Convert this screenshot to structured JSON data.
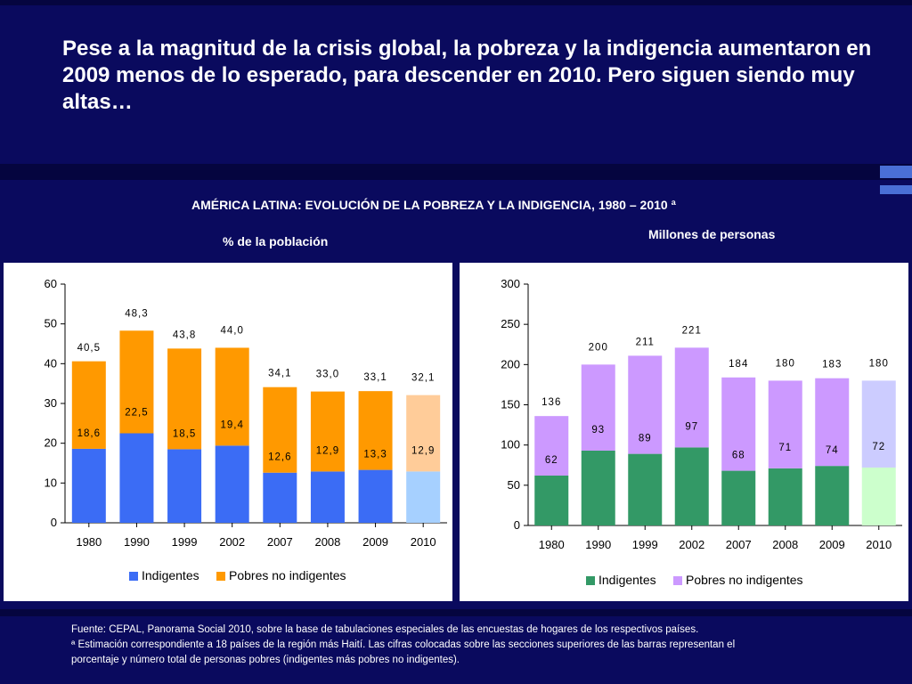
{
  "title": "Pese a la magnitud de la crisis global, la pobreza y la indigencia aumentaron en 2009 menos de lo esperado, para descender en 2010. Pero siguen siendo muy altas…",
  "chart_heading": "AMÉRICA LATINA: EVOLUCIÓN DE LA POBREZA Y LA INDIGENCIA, 1980 – 2010 ª",
  "footnote_lines": [
    "Fuente: CEPAL, Panorama Social 2010, sobre la base de tabulaciones especiales de las encuestas de hogares de los respectivos países.",
    "ª Estimación correspondiente a 18 países de la región más Haití. Las cifras colocadas sobre las secciones superiores de las barras representan el",
    "porcentaje y número total de personas pobres (indigentes más pobres no indigentes)."
  ],
  "chart_data": [
    {
      "type": "bar",
      "stacked": true,
      "subtitle": "% de la población",
      "categories": [
        "1980",
        "1990",
        "1999",
        "2002",
        "2007",
        "2008",
        "2009",
        "2010"
      ],
      "ylim": [
        0,
        60
      ],
      "yticks": [
        0,
        10,
        20,
        30,
        40,
        50,
        60
      ],
      "series": [
        {
          "name": "Indigentes",
          "color": "#3b6cf5",
          "estimate_color": "#a6d0ff",
          "values": [
            18.6,
            22.5,
            18.5,
            19.4,
            12.6,
            12.9,
            13.3,
            12.9
          ],
          "labels": [
            "18,6",
            "22,5",
            "18,5",
            "19,4",
            "12,6",
            "12,9",
            "13,3",
            "12,9"
          ]
        },
        {
          "name": "Pobres no indigentes",
          "color": "#ff9900",
          "estimate_color": "#ffcc99",
          "values": [
            22.0,
            25.8,
            25.3,
            24.6,
            21.5,
            20.1,
            19.8,
            19.2
          ]
        }
      ],
      "totals": [
        40.5,
        48.3,
        43.8,
        44.0,
        34.1,
        33.0,
        33.1,
        32.1
      ],
      "total_labels": [
        "40,5",
        "48,3",
        "43,8",
        "44,0",
        "34,1",
        "33,0",
        "33,1",
        "32,1"
      ],
      "legend": "bottom"
    },
    {
      "type": "bar",
      "stacked": true,
      "subtitle": "Millones de personas",
      "categories": [
        "1980",
        "1990",
        "1999",
        "2002",
        "2007",
        "2008",
        "2009",
        "2010"
      ],
      "ylim": [
        0,
        300
      ],
      "yticks": [
        0,
        50,
        100,
        150,
        200,
        250,
        300
      ],
      "series": [
        {
          "name": "Indigentes",
          "color": "#339966",
          "estimate_color": "#ccffcc",
          "values": [
            62,
            93,
            89,
            97,
            68,
            71,
            74,
            72
          ],
          "labels": [
            "62",
            "93",
            "89",
            "97",
            "68",
            "71",
            "74",
            "72"
          ]
        },
        {
          "name": "Pobres no indigentes",
          "color": "#cc99ff",
          "estimate_color": "#ccccff",
          "values": [
            74,
            107,
            122,
            124,
            116,
            109,
            109,
            108
          ]
        }
      ],
      "totals": [
        136,
        200,
        211,
        221,
        184,
        180,
        183,
        180
      ],
      "total_labels": [
        "136",
        "200",
        "211",
        "221",
        "184",
        "180",
        "183",
        "180"
      ],
      "legend": "bottom"
    }
  ]
}
